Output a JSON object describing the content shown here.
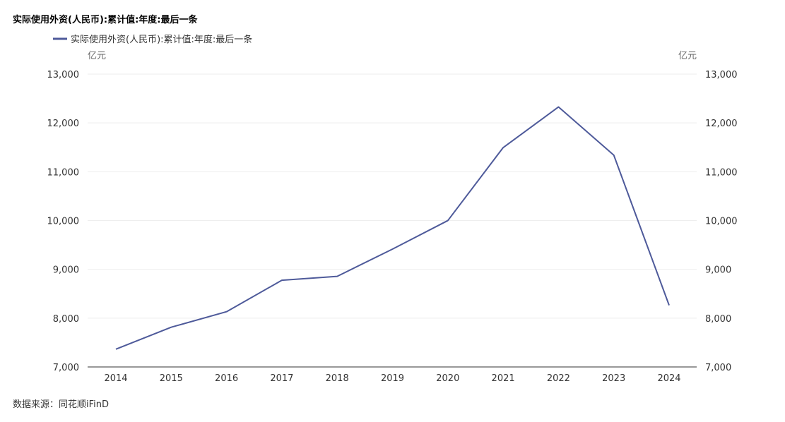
{
  "chart_data": {
    "type": "line",
    "title": "实际使用外资(人民币):累计值:年度:最后一条",
    "categories": [
      "2014",
      "2015",
      "2016",
      "2017",
      "2018",
      "2019",
      "2020",
      "2021",
      "2022",
      "2023",
      "2024"
    ],
    "series": [
      {
        "name": "实际使用外资(人民币):累计值:年度:最后一条",
        "color": "#4e5a9a",
        "values": [
          7364,
          7814,
          8132,
          8776,
          8856,
          9415,
          9999,
          11494,
          12327,
          11339,
          8263
        ]
      }
    ],
    "ylim": [
      7000,
      13000
    ],
    "yticks": [
      7000,
      8000,
      9000,
      10000,
      11000,
      12000,
      13000
    ],
    "ytick_labels": [
      "7,000",
      "8,000",
      "9,000",
      "10,000",
      "11,000",
      "12,000",
      "13,000"
    ],
    "ylabel_left": "亿元",
    "ylabel_right": "亿元",
    "grid": true,
    "legend_position": "top-left",
    "source": "数据来源：同花顺iFinD"
  }
}
